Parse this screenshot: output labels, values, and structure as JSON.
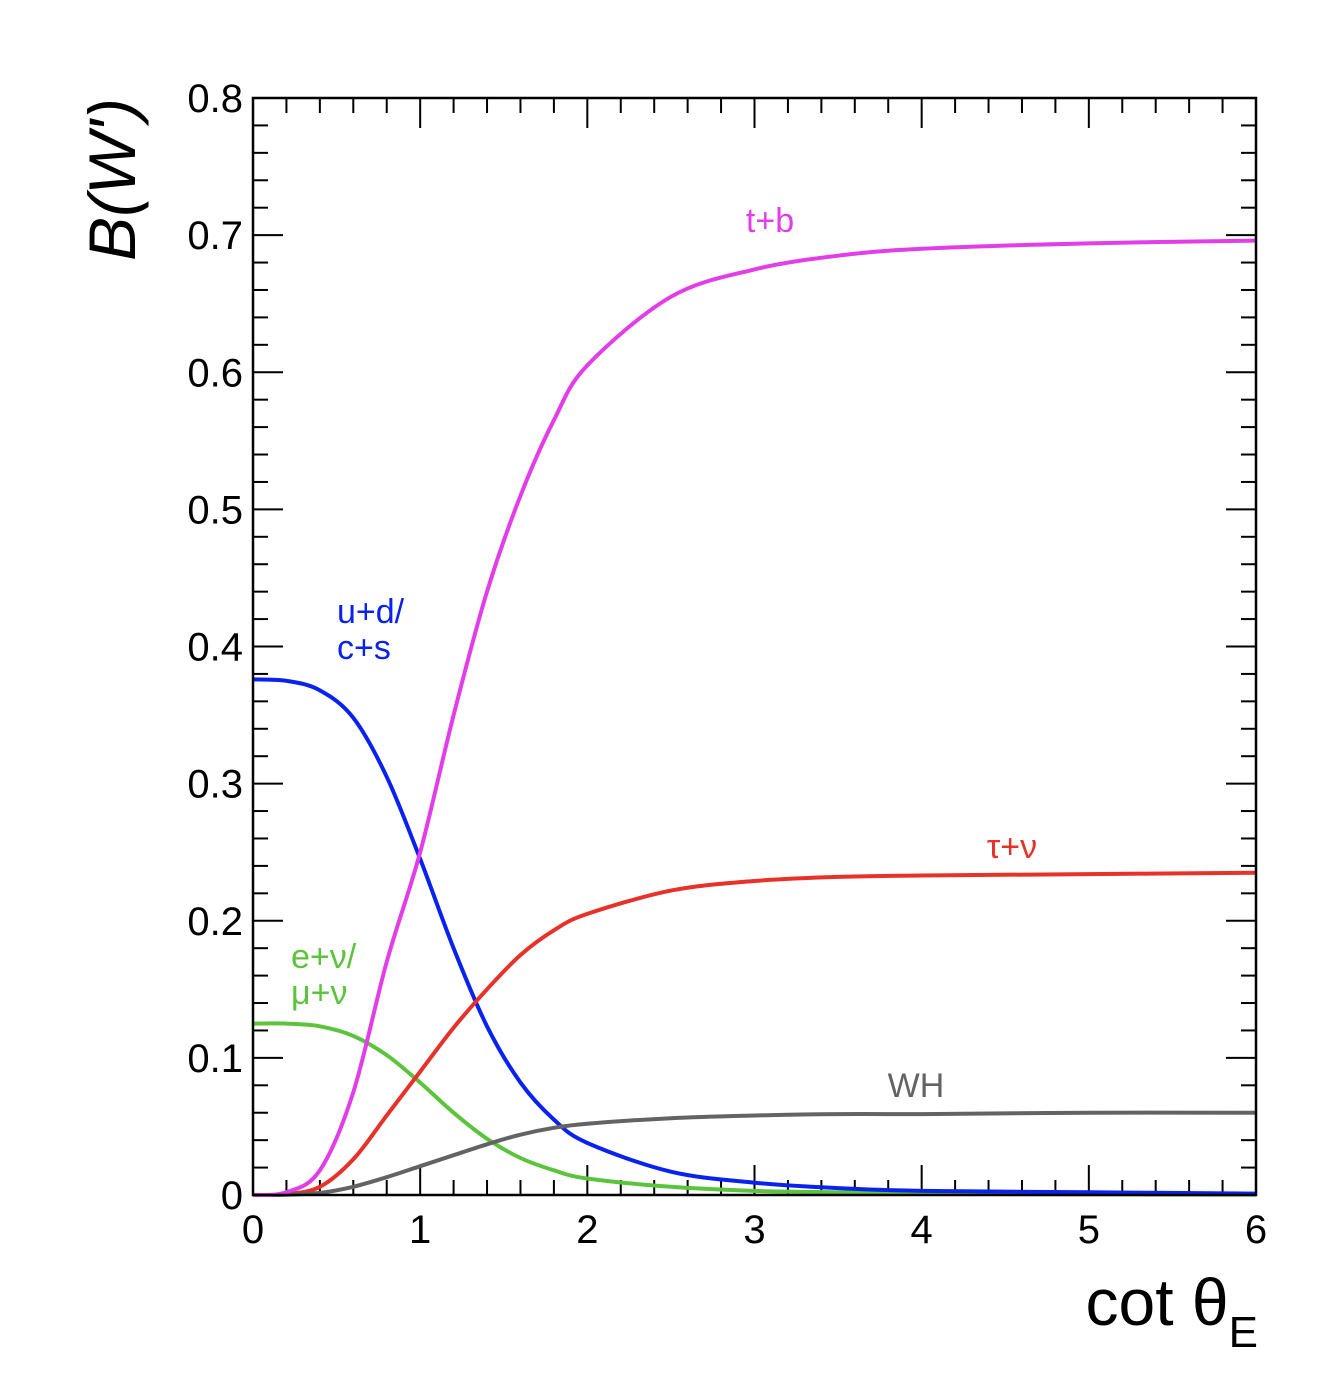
{
  "chart_data": {
    "type": "line",
    "title": "",
    "xlabel": "cot θ",
    "xlabel_sub": "E",
    "ylabel": "B(W')",
    "xlim": [
      0,
      6
    ],
    "ylim": [
      0,
      0.8
    ],
    "x_ticks": [
      "0",
      "1",
      "2",
      "3",
      "4",
      "5",
      "6"
    ],
    "y_ticks": [
      "0",
      "0.1",
      "0.2",
      "0.3",
      "0.4",
      "0.5",
      "0.6",
      "0.7",
      "0.8"
    ],
    "grid": false,
    "x": [
      0,
      0.2,
      0.4,
      0.6,
      0.8,
      1.0,
      1.2,
      1.4,
      1.6,
      1.8,
      2.0,
      2.5,
      3.0,
      3.5,
      4.0,
      5.0,
      6.0
    ],
    "series": [
      {
        "name": "t+b",
        "label_lines": [
          "t+b"
        ],
        "color": "#e23ee8",
        "values": [
          0.0,
          0.002,
          0.018,
          0.075,
          0.17,
          0.25,
          0.35,
          0.44,
          0.51,
          0.565,
          0.605,
          0.655,
          0.675,
          0.685,
          0.69,
          0.694,
          0.696
        ]
      },
      {
        "name": "u+d/ c+s",
        "label_lines": [
          "u+d/",
          "c+s"
        ],
        "color": "#0a22ee",
        "values": [
          0.376,
          0.375,
          0.368,
          0.348,
          0.305,
          0.245,
          0.18,
          0.123,
          0.082,
          0.055,
          0.038,
          0.017,
          0.009,
          0.005,
          0.003,
          0.002,
          0.001
        ]
      },
      {
        "name": "τ+ν",
        "label_lines": [
          "τ+ν"
        ],
        "color": "#e63228",
        "values": [
          0.0,
          0.0006,
          0.006,
          0.026,
          0.058,
          0.09,
          0.122,
          0.15,
          0.175,
          0.193,
          0.205,
          0.222,
          0.229,
          0.232,
          0.233,
          0.234,
          0.235
        ]
      },
      {
        "name": "e+ν/ μ+ν",
        "label_lines": [
          "e+ν/",
          "μ+ν"
        ],
        "color": "#5cc43c",
        "values": [
          0.125,
          0.125,
          0.123,
          0.116,
          0.102,
          0.082,
          0.06,
          0.041,
          0.027,
          0.018,
          0.012,
          0.006,
          0.003,
          0.002,
          0.001,
          0.0005,
          0.0003
        ]
      },
      {
        "name": "WH",
        "label_lines": [
          "WH"
        ],
        "color": "#636363",
        "values": [
          0.0,
          0.0002,
          0.0015,
          0.006,
          0.013,
          0.021,
          0.029,
          0.037,
          0.044,
          0.049,
          0.052,
          0.056,
          0.058,
          0.059,
          0.059,
          0.06,
          0.06
        ]
      }
    ]
  }
}
